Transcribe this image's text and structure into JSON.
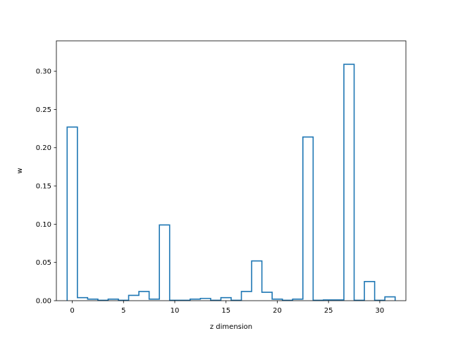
{
  "chart_data": {
    "type": "step",
    "xlabel": "z dimension",
    "ylabel": "w",
    "xlim": [
      -1.55,
      32.55
    ],
    "ylim": [
      0,
      0.3397
    ],
    "xticks": [
      0,
      5,
      10,
      15,
      20,
      25,
      30
    ],
    "xtick_labels": [
      "0",
      "5",
      "10",
      "15",
      "20",
      "25",
      "30"
    ],
    "yticks": [
      0.0,
      0.05,
      0.1,
      0.15,
      0.2,
      0.25,
      0.3
    ],
    "ytick_labels": [
      "0.00",
      "0.05",
      "0.10",
      "0.15",
      "0.20",
      "0.25",
      "0.30"
    ],
    "grid": false,
    "color": "#1f77b4",
    "x": [
      0,
      1,
      2,
      3,
      4,
      5,
      6,
      7,
      8,
      9,
      10,
      11,
      12,
      13,
      14,
      15,
      16,
      17,
      18,
      19,
      20,
      21,
      22,
      23,
      24,
      25,
      26,
      27,
      28,
      29,
      30,
      31
    ],
    "values": [
      0.227,
      0.004,
      0.002,
      0.0005,
      0.002,
      0.0005,
      0.007,
      0.012,
      0.002,
      0.099,
      0.0005,
      0.0005,
      0.002,
      0.003,
      0.0005,
      0.004,
      0.0005,
      0.012,
      0.052,
      0.011,
      0.002,
      0.0005,
      0.002,
      0.214,
      0.0005,
      0.001,
      0.001,
      0.309,
      0.0005,
      0.025,
      0.0005,
      0.005
    ]
  }
}
